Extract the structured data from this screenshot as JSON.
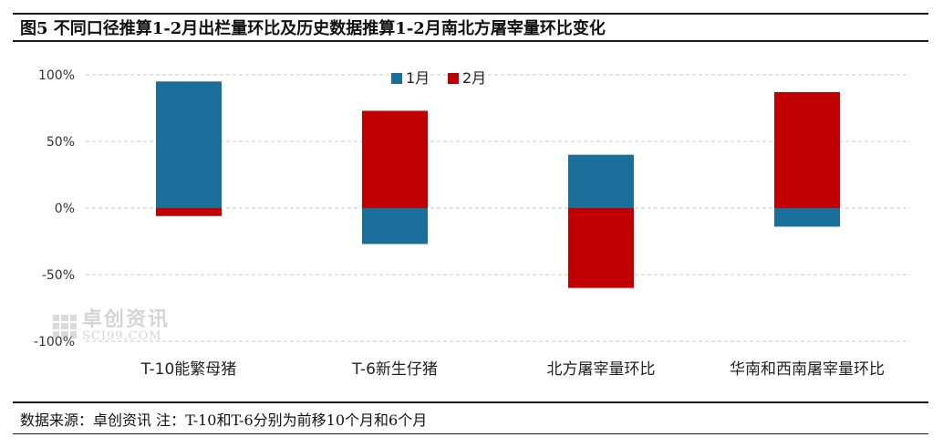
{
  "header": {
    "title": "图5 不同口径推算1-2月出栏量环比及历史数据推算1-2月南北方屠宰量环比变化"
  },
  "footer": {
    "note": "数据来源：卓创资讯 注：T-10和T-6分别为前移10个月和6个月"
  },
  "watermark": {
    "cn": "卓创资讯",
    "en": "SCI99.COM"
  },
  "chart_data": {
    "type": "bar",
    "categories": [
      "T-10能繁母猪",
      "T-6新生仔猪",
      "北方屠宰量环比",
      "华南和西南屠宰量环比"
    ],
    "series": [
      {
        "name": "1月",
        "color": "#1a6e9a",
        "values": [
          95,
          -27,
          40,
          -14
        ]
      },
      {
        "name": "2月",
        "color": "#c00000",
        "values": [
          -6,
          73,
          -60,
          87
        ]
      }
    ],
    "stacked": true,
    "ylim": [
      -100,
      100
    ],
    "yticks": [
      -100,
      -50,
      0,
      50,
      100
    ],
    "ytick_labels": [
      "-100%",
      "-50%",
      "0%",
      "50%",
      "100%"
    ],
    "grid": true,
    "legend_position": "top-center"
  }
}
